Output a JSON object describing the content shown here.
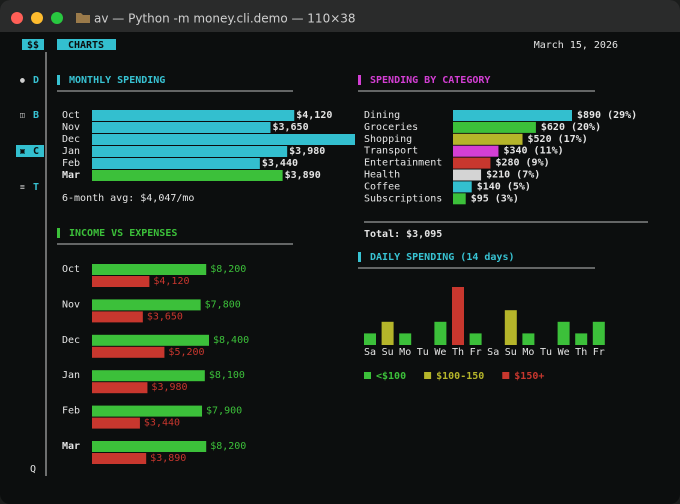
{
  "window": {
    "title": "av — Python -m money.cli.demo — 110×38"
  },
  "sidebar": {
    "badge": "$$",
    "items": [
      "D",
      "B",
      "C",
      "T"
    ],
    "active": 2,
    "quit": "Q"
  },
  "tab": "CHARTS",
  "date": "March 15, 2026",
  "monthly_spending": {
    "type": "bar",
    "title": "MONTHLY SPENDING",
    "title_color": "#38c3d3",
    "categories": [
      "Oct",
      "Nov",
      "Dec",
      "Jan",
      "Feb",
      "Mar"
    ],
    "values": [
      4120,
      3650,
      5200,
      3980,
      3440,
      3890
    ],
    "value_labels": [
      "$4,120",
      "$3,650",
      null,
      "$3,980",
      "$3,440",
      "$3,890"
    ],
    "color": "#33bfcf",
    "current": 5,
    "current_color": "#3cc03a",
    "note": "6-month avg: $4,047/mo"
  },
  "spending_by_category": {
    "type": "bar",
    "title": "SPENDING BY CATEGORY",
    "title_color": "#d43fd4",
    "categories": [
      "Dining",
      "Groceries",
      "Shopping",
      "Transport",
      "Entertainment",
      "Health",
      "Coffee",
      "Subscriptions"
    ],
    "values": [
      890,
      620,
      520,
      340,
      280,
      210,
      140,
      95
    ],
    "value_labels": [
      "$890 (29%)",
      "$620 (20%)",
      "$520 (17%)",
      "$340 (11%)",
      "$280 (9%)",
      "$210 (7%)",
      "$140 (5%)",
      "$95 (3%)"
    ],
    "colors": [
      "#33bfcf",
      "#3cc03a",
      "#b5b52a",
      "#d43fd4",
      "#c8372e",
      "#d4d4d4",
      "#33bfcf",
      "#3cc03a"
    ],
    "total": "Total: $3,095"
  },
  "income_vs_expenses": {
    "type": "grouped-bar",
    "title": "INCOME VS EXPENSES",
    "title_color": "#3cc03a",
    "categories": [
      "Oct",
      "Nov",
      "Dec",
      "Jan",
      "Feb",
      "Mar"
    ],
    "current": 5,
    "series": [
      {
        "color": "#3cc03a",
        "values": [
          8200,
          7800,
          8400,
          8100,
          7900,
          8200
        ],
        "value_labels": [
          "$8,200",
          "$7,800",
          "$8,400",
          "$8,100",
          "$7,900",
          "$8,200"
        ]
      },
      {
        "color": "#c8372e",
        "values": [
          4120,
          3650,
          5200,
          3980,
          3440,
          3890
        ],
        "value_labels": [
          "$4,120",
          "$3,650",
          "$5,200",
          "$3,980",
          "$3,440",
          "$3,890"
        ]
      }
    ]
  },
  "daily_spending": {
    "type": "column",
    "title": "DAILY SPENDING (14 days)",
    "title_color": "#38c3d3",
    "categories": [
      "Sa",
      "Su",
      "Mo",
      "Tu",
      "We",
      "Th",
      "Fr",
      "Sa",
      "Su",
      "Mo",
      "Tu",
      "We",
      "Th",
      "Fr"
    ],
    "values": [
      1,
      2,
      1,
      0,
      2,
      5,
      1,
      0,
      3,
      1,
      0,
      2,
      1,
      2
    ],
    "colors": [
      "#3cc03a",
      "#b5b52a",
      "#3cc03a",
      "#3cc03a",
      "#3cc03a",
      "#c8372e",
      "#3cc03a",
      "#3cc03a",
      "#b5b52a",
      "#3cc03a",
      "#3cc03a",
      "#3cc03a",
      "#3cc03a",
      "#3cc03a"
    ],
    "legend": [
      {
        "label": "<$100",
        "color": "#3cc03a"
      },
      {
        "label": "$100-150",
        "color": "#b5b52a"
      },
      {
        "label": "$150+",
        "color": "#c8372e"
      }
    ]
  }
}
